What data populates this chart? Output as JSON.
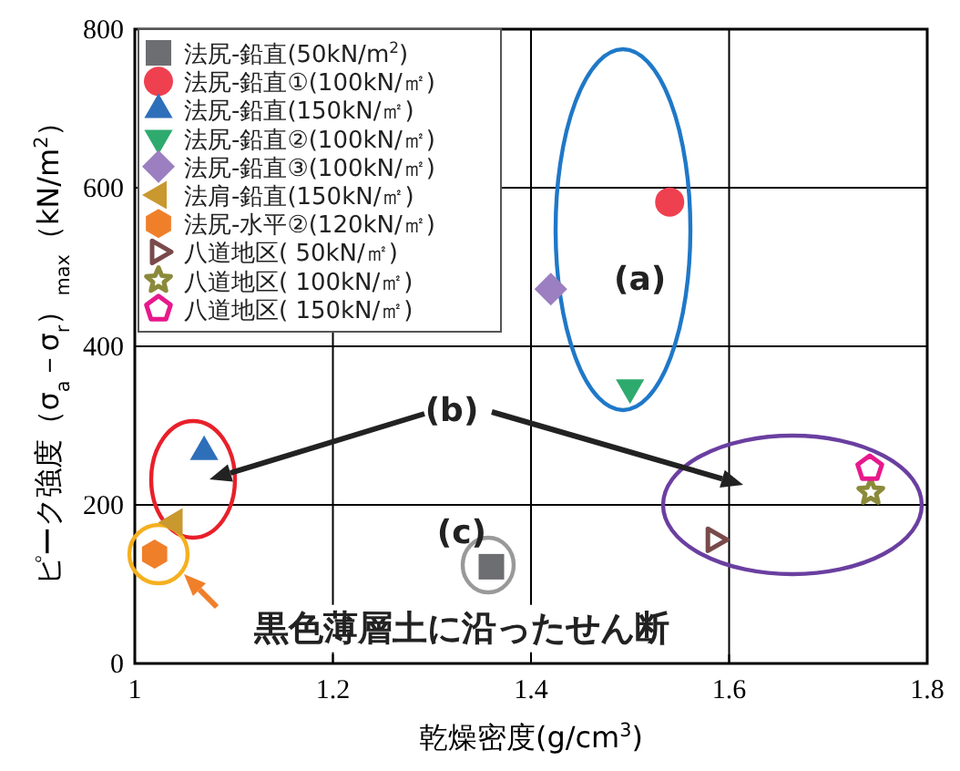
{
  "chart_data": {
    "type": "scatter",
    "xlabel": "乾燥密度(g/cm$^{3}$)",
    "ylabel": "ピーク強度（σ$_{a}$－σ$_{r}$）$_{max}$（kN/m$^{2}$）",
    "xlim": [
      1.0,
      1.8
    ],
    "ylim": [
      0,
      800
    ],
    "xticks": [
      1.0,
      1.2,
      1.4,
      1.6,
      1.8
    ],
    "yticks": [
      0,
      200,
      400,
      600,
      800
    ],
    "grid": true,
    "legend": "top left",
    "series": [
      {
        "name": "法尻-鉛直(50kN/m$^{2}$)",
        "color": "#6d6e71",
        "marker": "square",
        "x": [
          1.36
        ],
        "values": [
          122
        ]
      },
      {
        "name": "法尻-鉛直①(100kN/㎡)",
        "color": "#ef4050",
        "marker": "circle",
        "x": [
          1.54
        ],
        "values": [
          582
        ]
      },
      {
        "name": "法尻-鉛直(150kN/㎡)",
        "color": "#2e6fba",
        "marker": "triangle",
        "x": [
          1.07
        ],
        "values": [
          267
        ]
      },
      {
        "name": "法尻-鉛直②(100kN/㎡)",
        "color": "#2eaa6e",
        "marker": "triangle-down",
        "x": [
          1.5
        ],
        "values": [
          348
        ]
      },
      {
        "name": "法尻-鉛直③(100kN/㎡)",
        "color": "#9b7fc0",
        "marker": "diamond",
        "x": [
          1.42
        ],
        "values": [
          472
        ]
      },
      {
        "name": "法肩-鉛直(150kN/㎡)",
        "color": "#c9982e",
        "marker": "triangle-left",
        "x": [
          1.04
        ],
        "values": [
          178
        ]
      },
      {
        "name": "法尻-水平②(120kN/㎡)",
        "color": "#f07f2a",
        "x": [
          1.02
        ],
        "values": [
          138
        ]
      },
      {
        "name": "八道地区( 50kN/㎡)",
        "color": "#7a4a4a",
        "marker": "triangle-right-open",
        "x": [
          1.585
        ],
        "values": [
          156
        ]
      },
      {
        "name": "八道地区( 100kN/㎡)",
        "color": "#8b8a3a",
        "marker": "star-open",
        "x": [
          1.743
        ],
        "values": [
          216
        ]
      },
      {
        "name": "八道地区( 150kN/㎡)",
        "color": "#e8188c",
        "x": [
          1.742
        ],
        "values": [
          246
        ]
      }
    ],
    "annotations": [
      "(a)",
      "(b)",
      "(c)",
      "黒色薄層土に沿ったせん断"
    ]
  }
}
